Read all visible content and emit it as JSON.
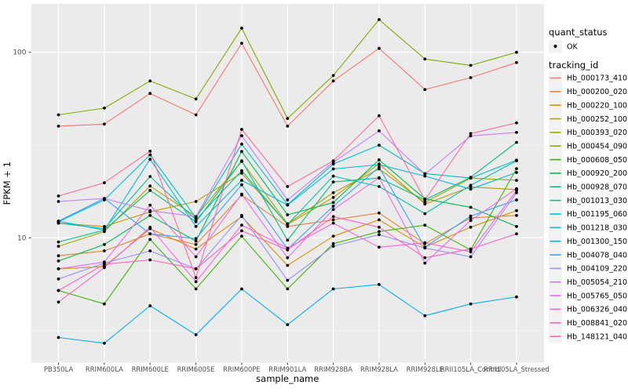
{
  "figure": {
    "background": "#FFFFFF",
    "panel_background": "#EBEBEB",
    "grid_major_color": "#FFFFFF",
    "grid_minor_color": "#F5F5F5",
    "tick_label_color": "#4D4D4D",
    "title_color": "#000000",
    "point_color": "#000000"
  },
  "axes": {
    "x": {
      "title": "sample_name"
    },
    "y": {
      "title": "FPKM + 1",
      "scale": "log10",
      "tick_labels": [
        "100",
        "10"
      ],
      "tick_values": [
        100,
        10
      ],
      "minor_values": [
        31.623,
        3.1623
      ]
    }
  },
  "legend": {
    "quant_status": {
      "title": "quant_status",
      "items": [
        {
          "label": "OK",
          "marker": "point-icon",
          "color": "#000000"
        }
      ]
    },
    "tracking_id": {
      "title": "tracking_id",
      "items": [
        {
          "label": "Hb_000173_410",
          "color": "#F8766D"
        },
        {
          "label": "Hb_000200_020",
          "color": "#EA8331"
        },
        {
          "label": "Hb_000220_100",
          "color": "#D89000"
        },
        {
          "label": "Hb_000252_100",
          "color": "#C09B00"
        },
        {
          "label": "Hb_000393_020",
          "color": "#A3A500"
        },
        {
          "label": "Hb_000454_090",
          "color": "#7CAE00"
        },
        {
          "label": "Hb_000608_050",
          "color": "#39B600"
        },
        {
          "label": "Hb_000920_200",
          "color": "#00BB4E"
        },
        {
          "label": "Hb_000928_070",
          "color": "#00BF7D"
        },
        {
          "label": "Hb_001013_030",
          "color": "#00C1A3"
        },
        {
          "label": "Hb_001195_060",
          "color": "#00BFC4"
        },
        {
          "label": "Hb_001218_030",
          "color": "#00BAE0"
        },
        {
          "label": "Hb_001300_150",
          "color": "#00B0F6"
        },
        {
          "label": "Hb_004078_040",
          "color": "#35A2FF"
        },
        {
          "label": "Hb_004109_220",
          "color": "#9590FF"
        },
        {
          "label": "Hb_005054_210",
          "color": "#C77CFF"
        },
        {
          "label": "Hb_005765_050",
          "color": "#E76BF3"
        },
        {
          "label": "Hb_006326_040",
          "color": "#FA62DB"
        },
        {
          "label": "Hb_008841_020",
          "color": "#FF62BC"
        },
        {
          "label": "Hb_148121_040",
          "color": "#FF6A98"
        }
      ]
    }
  },
  "chart_data": {
    "type": "line",
    "title": "",
    "xlabel": "sample_name",
    "ylabel": "FPKM + 1",
    "y_scale": "log10",
    "ylim": [
      2.1,
      185
    ],
    "grid": true,
    "legend_position": "right",
    "point_marker": "black-dot",
    "categories": [
      "PB350LA",
      "RRIM600LA",
      "RRIM600LE",
      "RRIM600SE",
      "RRIM600PE",
      "RRIM901LA",
      "RRIM928BA",
      "RRIM928LA",
      "RRIM928LE",
      "RRII105LA_Control",
      "RRII105LA_Stressed"
    ],
    "series": [
      {
        "name": "Hb_000173_410",
        "color": "#F8766D",
        "values": [
          40,
          41,
          60,
          46,
          112,
          40,
          70,
          105,
          63,
          73,
          88
        ]
      },
      {
        "name": "Hb_000200_020",
        "color": "#EA8331",
        "values": [
          8.0,
          8.5,
          10.5,
          9.2,
          17.0,
          11.5,
          12.5,
          13.6,
          9.3,
          12.8,
          13.2
        ]
      },
      {
        "name": "Hb_000220_100",
        "color": "#D89000",
        "values": [
          6.8,
          7.0,
          11.2,
          8.7,
          13.0,
          7.1,
          10.2,
          12.5,
          8.9,
          11.4,
          14.0
        ]
      },
      {
        "name": "Hb_000252_100",
        "color": "#C09B00",
        "values": [
          12.0,
          11.5,
          13.8,
          15.7,
          22.3,
          11.8,
          16.5,
          25.0,
          15.2,
          18.8,
          18.2
        ]
      },
      {
        "name": "Hb_000393_020",
        "color": "#A3A500",
        "values": [
          9.0,
          10.8,
          19.0,
          13.0,
          25.8,
          11.9,
          17.5,
          23.5,
          15.5,
          21.0,
          20.4
        ]
      },
      {
        "name": "Hb_000454_090",
        "color": "#7CAE00",
        "values": [
          46,
          50,
          70,
          56,
          135,
          44,
          75,
          150,
          92,
          85,
          100
        ]
      },
      {
        "name": "Hb_000608_050",
        "color": "#39B600",
        "values": [
          5.2,
          4.4,
          9.8,
          5.3,
          10.2,
          5.3,
          9.3,
          10.8,
          11.7,
          8.6,
          23.6
        ]
      },
      {
        "name": "Hb_000920_200",
        "color": "#00BB4E",
        "values": [
          7.5,
          9.2,
          13.2,
          9.6,
          29.2,
          13.3,
          15.5,
          26.3,
          16.2,
          14.6,
          11.5
        ]
      },
      {
        "name": "Hb_000928_070",
        "color": "#00BF7D",
        "values": [
          9.5,
          11.0,
          18.0,
          12.2,
          26.0,
          9.7,
          20.0,
          21.0,
          16.0,
          21.2,
          32.7
        ]
      },
      {
        "name": "Hb_001013_030",
        "color": "#00C1A3",
        "values": [
          12.0,
          11.2,
          21.4,
          12.5,
          23.0,
          11.8,
          21.5,
          18.9,
          13.5,
          19.2,
          26.0
        ]
      },
      {
        "name": "Hb_001195_060",
        "color": "#00BFC4",
        "values": [
          12.2,
          16.0,
          28.0,
          12.8,
          32.0,
          15.1,
          25.0,
          31.6,
          22.2,
          21.0,
          26.2
        ]
      },
      {
        "name": "Hb_001218_030",
        "color": "#00BAE0",
        "values": [
          12.3,
          11.0,
          26.5,
          11.5,
          20.4,
          15.0,
          23.5,
          24.8,
          21.5,
          18.3,
          22.5
        ]
      },
      {
        "name": "Hb_001300_150",
        "color": "#00B0F6",
        "values": [
          2.9,
          2.7,
          4.3,
          3.0,
          5.3,
          3.4,
          5.3,
          5.6,
          3.8,
          4.4,
          4.8
        ]
      },
      {
        "name": "Hb_004078_040",
        "color": "#35A2FF",
        "values": [
          12.3,
          16.3,
          10.5,
          9.9,
          19.3,
          8.7,
          14.8,
          24.0,
          8.9,
          13.1,
          16.0
        ]
      },
      {
        "name": "Hb_004109_220",
        "color": "#9590FF",
        "values": [
          6.0,
          7.3,
          8.5,
          6.8,
          13.2,
          5.9,
          9.0,
          10.4,
          8.8,
          7.9,
          17.5
        ]
      },
      {
        "name": "Hb_005054_210",
        "color": "#C77CFF",
        "values": [
          15.7,
          16.3,
          14.0,
          13.0,
          35.5,
          16.0,
          25.5,
          37.7,
          22.0,
          35.4,
          37.0
        ]
      },
      {
        "name": "Hb_005765_050",
        "color": "#E76BF3",
        "values": [
          6.8,
          7.4,
          15.0,
          7.9,
          17.2,
          7.8,
          14.2,
          21.1,
          7.3,
          12.4,
          18.4
        ]
      },
      {
        "name": "Hb_006326_040",
        "color": "#FA62DB",
        "values": [
          4.5,
          6.9,
          11.4,
          5.8,
          11.7,
          8.8,
          12.0,
          8.9,
          9.4,
          8.4,
          18.0
        ]
      },
      {
        "name": "Hb_008841_020",
        "color": "#FF62BC",
        "values": [
          5.2,
          7.2,
          7.6,
          6.8,
          10.9,
          8.6,
          13.0,
          11.4,
          7.8,
          8.7,
          10.5
        ]
      },
      {
        "name": "Hb_148121_040",
        "color": "#FF6A98",
        "values": [
          16.8,
          19.8,
          29.3,
          6.1,
          38.4,
          18.9,
          26.0,
          45.5,
          16.0,
          36.5,
          41.6
        ]
      }
    ]
  }
}
